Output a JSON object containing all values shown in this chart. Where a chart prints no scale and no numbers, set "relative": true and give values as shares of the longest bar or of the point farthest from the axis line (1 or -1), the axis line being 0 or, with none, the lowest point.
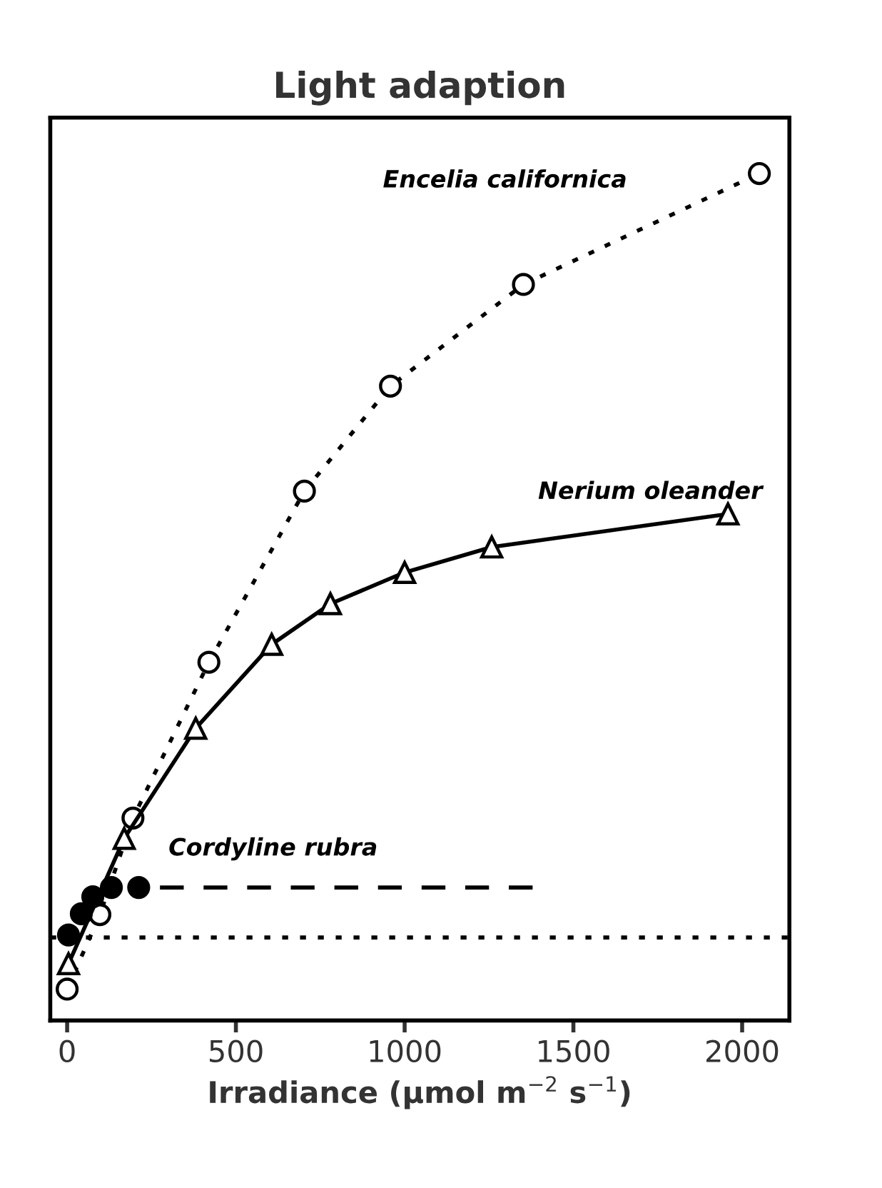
{
  "chart_data": {
    "type": "line",
    "title": "Light adaption",
    "xlabel": "Irradiance (μmol m$^{−2}$ s$^{−1}$)",
    "relative": true,
    "xlim": [
      -50,
      2140
    ],
    "xticks": [
      0,
      500,
      1000,
      1500,
      2000
    ],
    "grid": false,
    "legend": false,
    "series": [
      {
        "name": "Encelia californica",
        "color": "#000000",
        "line_style": "dotted",
        "marker": "circle",
        "x": [
          0,
          97,
          195,
          420,
          703,
          958,
          1352,
          2051
        ],
        "values": [
          0.037,
          0.125,
          0.239,
          0.423,
          0.625,
          0.749,
          0.869,
          1.0
        ]
      },
      {
        "name": "Nerium oleander",
        "color": "#000000",
        "line_style": "solid",
        "marker": "triangle",
        "x": [
          4,
          169,
          381,
          606,
          780,
          1000,
          1258,
          1958
        ],
        "values": [
          0.067,
          0.215,
          0.345,
          0.444,
          0.492,
          0.529,
          0.559,
          0.598
        ]
      },
      {
        "name": "Cordyline rubra",
        "color": "#000000",
        "type": "scatter",
        "marker": "filled circle",
        "x": [
          4,
          42,
          76,
          131,
          212
        ],
        "values": [
          0.101,
          0.126,
          0.146,
          0.157,
          0.157
        ]
      },
      {
        "color": "#000000",
        "line_style": "dashed",
        "marker": "none",
        "x": [
          275,
          1381
        ],
        "values": [
          0.157,
          0.157
        ]
      }
    ],
    "ref_lines": [
      {
        "axis": "y",
        "value": 0.098,
        "line_style": "dotted",
        "color": "#000000"
      }
    ]
  }
}
